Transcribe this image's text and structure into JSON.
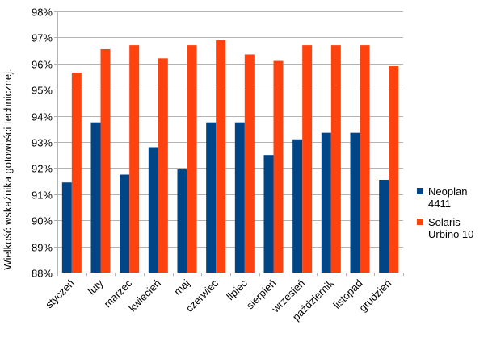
{
  "chart_data": {
    "type": "bar",
    "title": "",
    "xlabel": "",
    "ylabel": "Wielkość wskaźnika gotowości technicznej.",
    "ylim": [
      88,
      98
    ],
    "y_ticks": [
      "88%",
      "89%",
      "90%",
      "91%",
      "92%",
      "93%",
      "94%",
      "95%",
      "96%",
      "97%",
      "98%"
    ],
    "grid": true,
    "legend_position": "right",
    "categories": [
      "styczeń",
      "luty",
      "marzec",
      "kwiecień",
      "maj",
      "czerwiec",
      "lipiec",
      "sierpień",
      "wrzesień",
      "październik",
      "listopad",
      "grudzień"
    ],
    "series": [
      {
        "name": "Neoplan 4411",
        "name_lines": [
          "Neoplan",
          "4411"
        ],
        "color": "#004586",
        "values": [
          91.45,
          93.75,
          91.75,
          92.8,
          91.95,
          93.75,
          93.75,
          92.5,
          93.1,
          93.35,
          93.35,
          91.55
        ]
      },
      {
        "name": "Solaris Urbino 10",
        "name_lines": [
          "Solaris",
          "Urbino 10"
        ],
        "color": "#ff420e",
        "values": [
          95.65,
          96.55,
          96.7,
          96.2,
          96.7,
          96.9,
          96.35,
          96.1,
          96.7,
          96.7,
          96.7,
          95.9
        ]
      }
    ]
  }
}
